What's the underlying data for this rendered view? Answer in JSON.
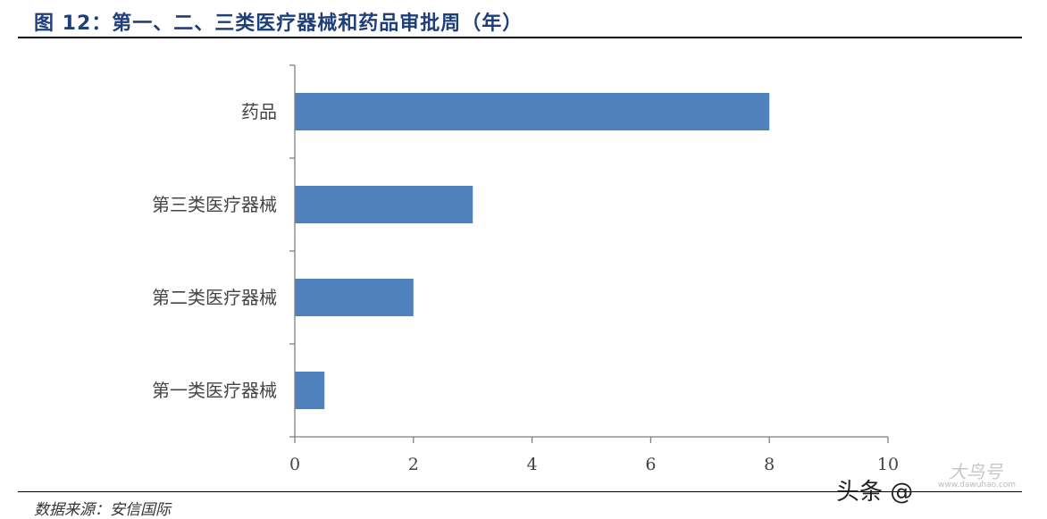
{
  "title": "图 12：第一、二、三类医疗器械和药品审批周（年）",
  "source": "数据来源：安信国际",
  "watermark": "头条 @",
  "watermark_logo": "大鸟号",
  "watermark_url": "www.dawuhao.com",
  "colors": {
    "bar": "#4f81bd",
    "title": "#1f3f7a",
    "axis": "#7f7f7f"
  },
  "chart_data": {
    "type": "bar",
    "orientation": "horizontal",
    "categories": [
      "药品",
      "第三类医疗器械",
      "第二类医疗器械",
      "第一类医疗器械"
    ],
    "values": [
      8,
      3,
      2,
      0.5
    ],
    "xlim": [
      0,
      10
    ],
    "xticks": [
      "0",
      "2",
      "4",
      "6",
      "8",
      "10"
    ],
    "grid": false,
    "legend": "none"
  }
}
